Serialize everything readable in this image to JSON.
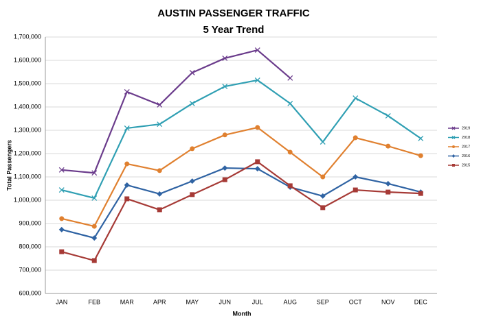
{
  "chart_data": {
    "type": "line",
    "title": "AUSTIN PASSENGER TRAFFIC",
    "subtitle": "5 Year Trend",
    "x_label": "Month",
    "y_label": "Total Passengers",
    "categories": [
      "JAN",
      "FEB",
      "MAR",
      "APR",
      "MAY",
      "JUN",
      "JUL",
      "AUG",
      "SEP",
      "OCT",
      "NOV",
      "DEC"
    ],
    "ylim": [
      600000,
      1700000
    ],
    "yticks": [
      {
        "value": 600000,
        "label": "600,000"
      },
      {
        "value": 700000,
        "label": "700,000"
      },
      {
        "value": 800000,
        "label": "800,000"
      },
      {
        "value": 900000,
        "label": "900,000"
      },
      {
        "value": 1000000,
        "label": "1,000,000"
      },
      {
        "value": 1100000,
        "label": "1,100,000"
      },
      {
        "value": 1200000,
        "label": "1,200,000"
      },
      {
        "value": 1300000,
        "label": "1,300,000"
      },
      {
        "value": 1400000,
        "label": "1,400,000"
      },
      {
        "value": 1500000,
        "label": "1,500,000"
      },
      {
        "value": 1600000,
        "label": "1,600,000"
      },
      {
        "value": 1700000,
        "label": "1,700,000"
      }
    ],
    "grid": true,
    "legend": "right",
    "series": [
      {
        "name": "2019",
        "color": "#6b3c8c",
        "marker": "x",
        "values": [
          1130000,
          1117000,
          1465000,
          1409000,
          1547000,
          1609000,
          1644000,
          1524000,
          null,
          null,
          null,
          null
        ]
      },
      {
        "name": "2018",
        "color": "#2f9fb3",
        "marker": "x",
        "values": [
          1044000,
          1009000,
          1309000,
          1326000,
          1415000,
          1488000,
          1515000,
          1415000,
          1250000,
          1438000,
          1362000,
          1265000
        ]
      },
      {
        "name": "2017",
        "color": "#e0802f",
        "marker": "circle",
        "values": [
          921000,
          888000,
          1156000,
          1127000,
          1221000,
          1280000,
          1312000,
          1206000,
          1100000,
          1268000,
          1232000,
          1191000
        ]
      },
      {
        "name": "2016",
        "color": "#2f63a3",
        "marker": "diamond",
        "values": [
          874000,
          838000,
          1065000,
          1027000,
          1082000,
          1138000,
          1135000,
          1056000,
          1018000,
          1100000,
          1071000,
          1035000
        ]
      },
      {
        "name": "2015",
        "color": "#a63a36",
        "marker": "square",
        "values": [
          779000,
          741000,
          1006000,
          959000,
          1024000,
          1088000,
          1165000,
          1062000,
          968000,
          1044000,
          1035000,
          1029000
        ]
      }
    ]
  }
}
